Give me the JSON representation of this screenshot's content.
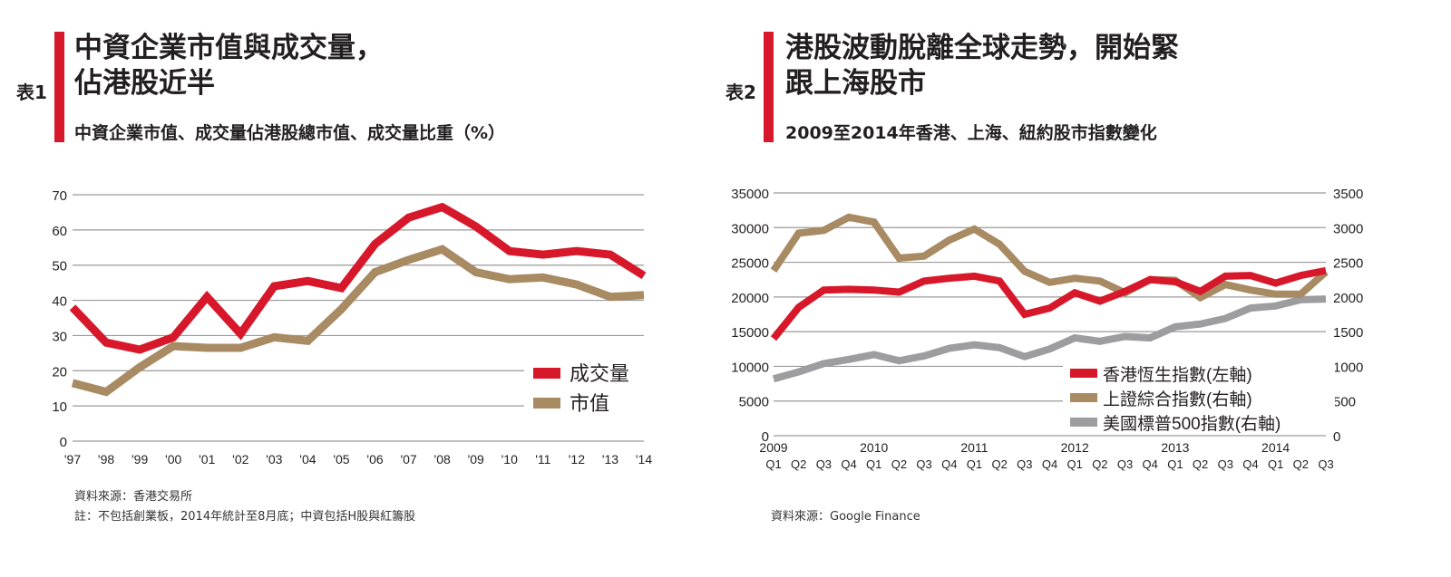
{
  "left": {
    "tag": "表1",
    "title": "中資企業市值與成交量，\n佔港股近半",
    "subtitle": "中資企業市值、成交量佔港股總市值、成交量比重（%）",
    "source": "資料來源：香港交易所",
    "footnote": "註：不包括創業板，2014年統計至8月底；中資包括H股與紅籌股"
  },
  "right": {
    "tag": "表2",
    "title": "港股波動脫離全球走勢，開始緊\n跟上海股市",
    "subtitle": "2009至2014年香港、上海、紐約股市指數變化",
    "source": "資料來源：Google Finance"
  },
  "chart_data": [
    {
      "type": "line",
      "categories": [
        "'97",
        "'98",
        "'99",
        "'00",
        "'01",
        "'02",
        "'03",
        "'04",
        "'05",
        "'06",
        "'07",
        "'08",
        "'09",
        "'10",
        "'11",
        "'12",
        "'13",
        "'14"
      ],
      "ylim": [
        0,
        70
      ],
      "yticks": [
        0,
        10,
        20,
        30,
        40,
        50,
        60,
        70
      ],
      "grid": true,
      "legend": "bottom-right",
      "series": [
        {
          "name": "成交量",
          "color": "#d7182a",
          "values": [
            38,
            28,
            26,
            29.5,
            41,
            30.5,
            44,
            45.5,
            43.5,
            56,
            63.5,
            66.5,
            61,
            54,
            53,
            54,
            53,
            47
          ]
        },
        {
          "name": "市值",
          "color": "#a88a63",
          "values": [
            16.5,
            14,
            21,
            27,
            26.5,
            26.5,
            29.5,
            28.5,
            37.5,
            48,
            51.5,
            54.5,
            48,
            46,
            46.5,
            44.5,
            41,
            41.5
          ]
        }
      ]
    },
    {
      "type": "line",
      "categories": [
        "Q1",
        "Q2",
        "Q3",
        "Q4",
        "Q1",
        "Q2",
        "Q3",
        "Q4",
        "Q1",
        "Q2",
        "Q3",
        "Q4",
        "Q1",
        "Q2",
        "Q3",
        "Q4",
        "Q1",
        "Q2",
        "Q3",
        "Q4",
        "Q1",
        "Q2",
        "Q3"
      ],
      "year_labels": [
        "2009",
        "2010",
        "2011",
        "2012",
        "2013",
        "2014"
      ],
      "ylim": [
        0,
        35000
      ],
      "yticks": [
        0,
        5000,
        10000,
        15000,
        20000,
        25000,
        30000,
        35000
      ],
      "y2lim": [
        0,
        3500
      ],
      "y2ticks": [
        0,
        500,
        1000,
        1500,
        2000,
        2500,
        3000,
        3500
      ],
      "grid": true,
      "legend": "bottom-right",
      "series": [
        {
          "name": "香港恆生指數(左軸)",
          "axis": "left",
          "color": "#d7182a",
          "values": [
            14000,
            18500,
            21000,
            21100,
            21000,
            20700,
            22300,
            22700,
            23000,
            22300,
            17500,
            18400,
            20600,
            19400,
            20800,
            22500,
            22200,
            20800,
            23000,
            23100,
            22000,
            23100,
            23800
          ]
        },
        {
          "name": "上證綜合指數(右軸)",
          "axis": "right",
          "color": "#a88a63",
          "values": [
            2380,
            2920,
            2960,
            3150,
            3080,
            2560,
            2590,
            2820,
            2980,
            2760,
            2370,
            2210,
            2270,
            2230,
            2060,
            2250,
            2240,
            1990,
            2180,
            2100,
            2040,
            2040,
            2360
          ]
        },
        {
          "name": "美國標普500指數(右軸)",
          "axis": "right",
          "color": "#9d9d9f",
          "values": [
            820,
            920,
            1040,
            1100,
            1170,
            1080,
            1150,
            1260,
            1310,
            1270,
            1140,
            1250,
            1410,
            1360,
            1430,
            1410,
            1570,
            1610,
            1690,
            1840,
            1870,
            1960,
            1970
          ]
        }
      ]
    }
  ]
}
